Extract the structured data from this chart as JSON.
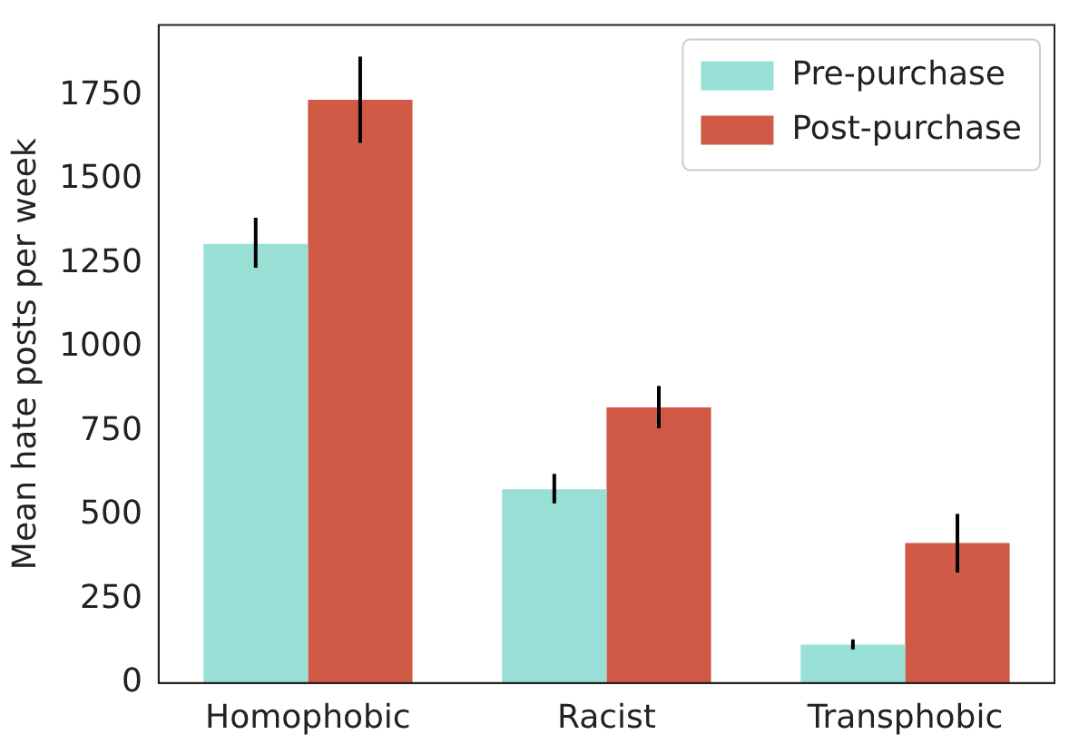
{
  "chart_data": {
    "type": "bar",
    "ylabel": "Mean hate posts per week",
    "categories": [
      "Homophobic",
      "Racist",
      "Transphobic"
    ],
    "series": [
      {
        "name": "Pre-purchase",
        "color": "#98e0d5",
        "values": [
          1308,
          577,
          114
        ],
        "errors": [
          [
            1237,
            1386
          ],
          [
            535,
            623
          ],
          [
            100,
            130
          ]
        ]
      },
      {
        "name": "Post-purchase",
        "color": "#d05a45",
        "values": [
          1737,
          821,
          417
        ],
        "errors": [
          [
            1609,
            1866
          ],
          [
            759,
            885
          ],
          [
            329,
            504
          ]
        ]
      }
    ],
    "ylim": [
      0,
      1960
    ],
    "yticks": [
      0,
      250,
      500,
      750,
      1000,
      1250,
      1500,
      1750
    ],
    "grid": false,
    "legend": "top right"
  }
}
